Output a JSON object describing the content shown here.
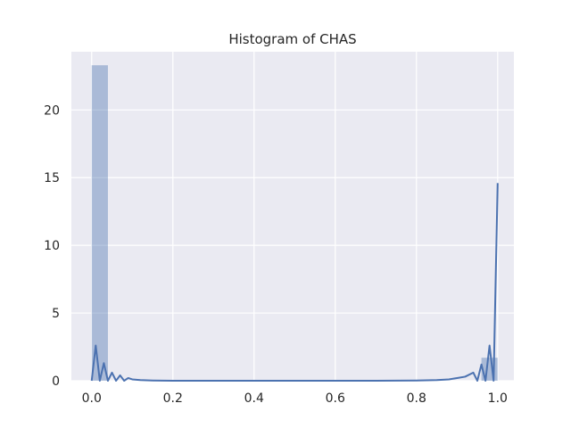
{
  "chart_data": {
    "type": "bar",
    "title": "Histogram of CHAS",
    "xlabel": "",
    "ylabel": "",
    "xlim": [
      -0.05,
      1.04
    ],
    "ylim": [
      0,
      24.3
    ],
    "grid": true,
    "legend": "none",
    "x_ticks": [
      0.0,
      0.2,
      0.4,
      0.6,
      0.8,
      1.0
    ],
    "x_tick_labels": [
      "0.0",
      "0.2",
      "0.4",
      "0.6",
      "0.8",
      "1.0"
    ],
    "y_ticks": [
      0,
      5,
      10,
      15,
      20
    ],
    "y_tick_labels": [
      "0",
      "5",
      "10",
      "15",
      "20"
    ],
    "bars": [
      {
        "x0": 0.0,
        "x1": 0.04,
        "value": 23.3
      },
      {
        "x0": 0.96,
        "x1": 1.0,
        "value": 1.7
      }
    ],
    "density_line": {
      "x": [
        0.0,
        0.01,
        0.02,
        0.03,
        0.04,
        0.05,
        0.06,
        0.07,
        0.08,
        0.09,
        0.1,
        0.12,
        0.15,
        0.2,
        0.3,
        0.5,
        0.7,
        0.8,
        0.85,
        0.88,
        0.9,
        0.92,
        0.94,
        0.95,
        0.96,
        0.97,
        0.98,
        0.99,
        1.0
      ],
      "y": [
        0.0,
        2.6,
        0.0,
        1.3,
        0.0,
        0.6,
        0.0,
        0.4,
        0.0,
        0.2,
        0.1,
        0.05,
        0.02,
        0.0,
        0.0,
        0.0,
        0.0,
        0.02,
        0.05,
        0.1,
        0.2,
        0.3,
        0.6,
        0.0,
        1.2,
        0.0,
        2.6,
        0.0,
        14.6
      ]
    },
    "colors": {
      "bar": "#4c72b0",
      "bar_opacity": 0.4,
      "line": "#4c72b0",
      "plot_background": "#eaeaf2",
      "grid": "#ffffff",
      "text": "#262626"
    }
  }
}
